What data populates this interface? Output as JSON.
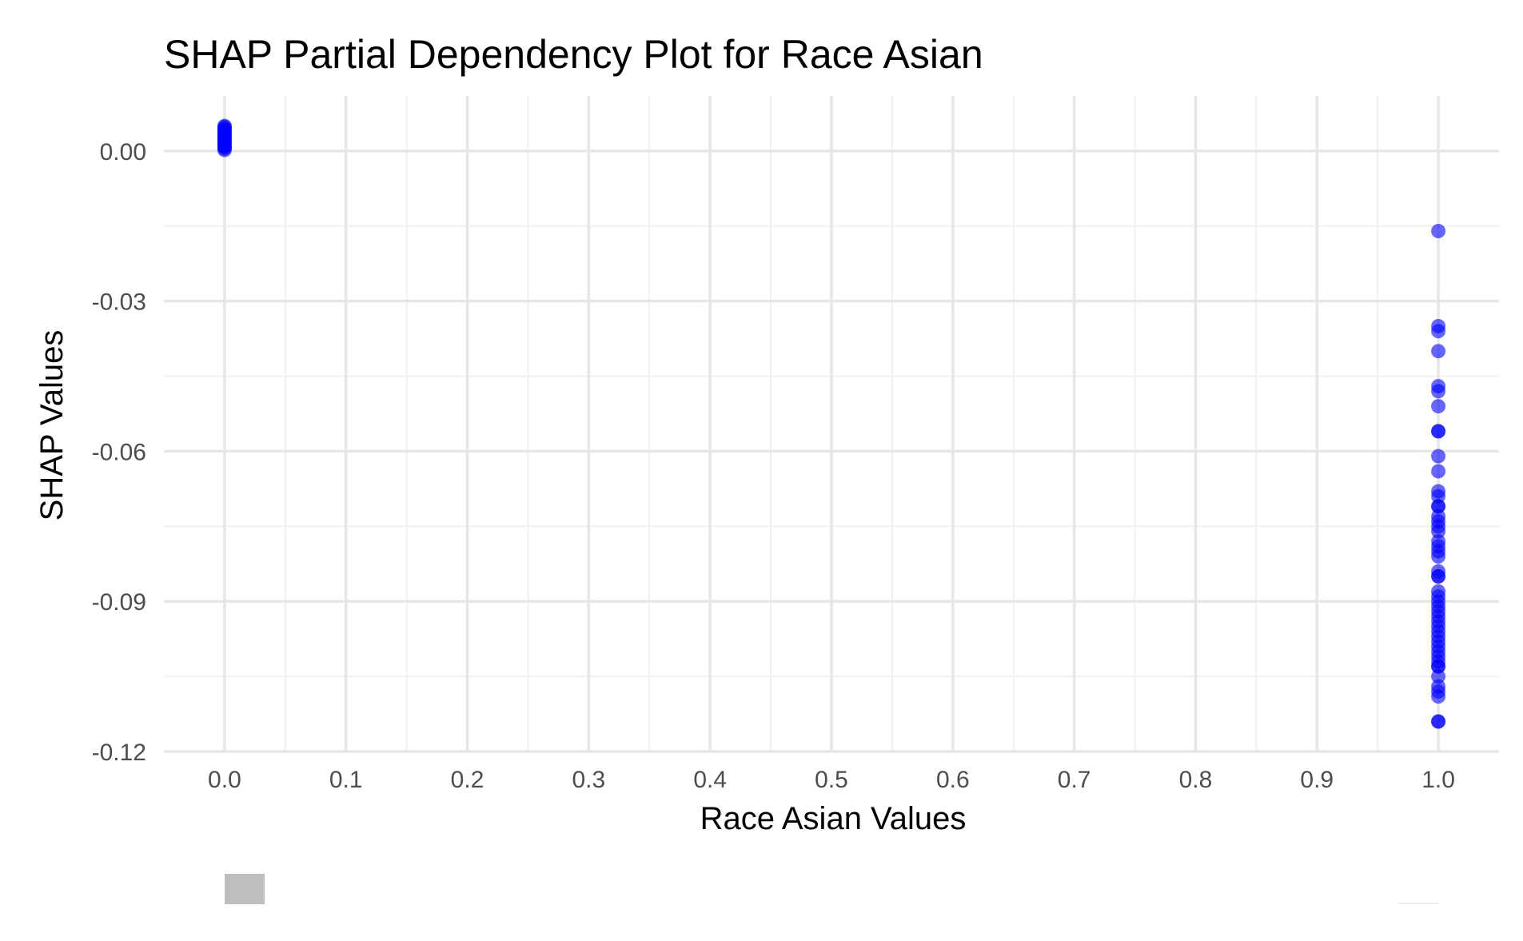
{
  "chart_data": {
    "type": "scatter",
    "title": "SHAP Partial Dependency Plot for Race Asian",
    "xlabel": "Race Asian Values",
    "ylabel": "SHAP Values",
    "xlim": [
      -0.05,
      1.05
    ],
    "ylim": [
      -0.12,
      0.011
    ],
    "x_ticks": [
      {
        "value": 0.0,
        "label": "0.0"
      },
      {
        "value": 0.1,
        "label": "0.1"
      },
      {
        "value": 0.2,
        "label": "0.2"
      },
      {
        "value": 0.3,
        "label": "0.3"
      },
      {
        "value": 0.4,
        "label": "0.4"
      },
      {
        "value": 0.5,
        "label": "0.5"
      },
      {
        "value": 0.6,
        "label": "0.6"
      },
      {
        "value": 0.7,
        "label": "0.7"
      },
      {
        "value": 0.8,
        "label": "0.8"
      },
      {
        "value": 0.9,
        "label": "0.9"
      },
      {
        "value": 1.0,
        "label": "1.0"
      }
    ],
    "y_ticks": [
      {
        "value": 0.0,
        "label": "0.00"
      },
      {
        "value": -0.03,
        "label": "-0.03"
      },
      {
        "value": -0.06,
        "label": "-0.06"
      },
      {
        "value": -0.09,
        "label": "-0.09"
      },
      {
        "value": -0.12,
        "label": "-0.12"
      }
    ],
    "grid": true,
    "legend": "none",
    "point_color": "#0000ff",
    "point_opacity": 0.6,
    "series": [
      {
        "x": [
          0,
          0,
          0,
          0,
          0,
          0,
          0,
          0,
          0,
          0,
          0,
          0,
          0,
          0,
          0,
          0,
          0,
          0,
          0,
          0,
          1,
          1,
          1,
          1,
          1,
          1,
          1,
          1,
          1,
          1,
          1,
          1,
          1,
          1,
          1,
          1,
          1,
          1,
          1,
          1,
          1,
          1,
          1,
          1,
          1,
          1,
          1,
          1,
          1,
          1,
          1,
          1,
          1,
          1,
          1,
          1,
          1,
          1,
          1,
          1,
          1,
          1,
          1,
          1,
          1,
          1,
          1,
          1,
          1
        ],
        "y": [
          0.005,
          0.0045,
          0.004,
          0.0035,
          0.003,
          0.0025,
          0.002,
          0.0015,
          0.001,
          0.0005,
          0.0048,
          0.0038,
          0.0028,
          0.0018,
          0.0008,
          0.0042,
          0.0032,
          0.0022,
          0.0012,
          0.0002,
          -0.016,
          -0.035,
          -0.036,
          -0.04,
          -0.047,
          -0.048,
          -0.051,
          -0.056,
          -0.056,
          -0.061,
          -0.064,
          -0.068,
          -0.069,
          -0.071,
          -0.071,
          -0.073,
          -0.074,
          -0.075,
          -0.076,
          -0.078,
          -0.079,
          -0.08,
          -0.081,
          -0.084,
          -0.085,
          -0.085,
          -0.088,
          -0.089,
          -0.09,
          -0.091,
          -0.092,
          -0.093,
          -0.094,
          -0.095,
          -0.096,
          -0.097,
          -0.098,
          -0.099,
          -0.1,
          -0.101,
          -0.102,
          -0.103,
          -0.103,
          -0.105,
          -0.107,
          -0.108,
          -0.109,
          -0.114,
          -0.114
        ]
      }
    ]
  },
  "legend_swatch_color": "#bebebe"
}
